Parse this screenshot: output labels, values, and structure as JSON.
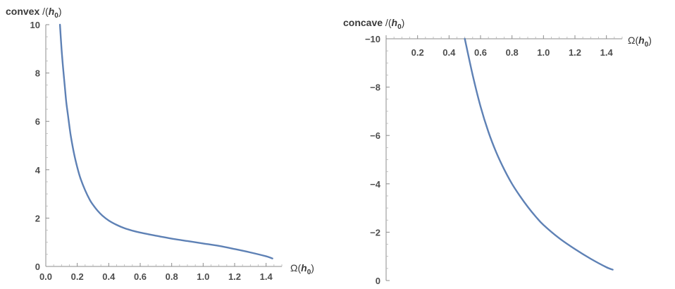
{
  "colors": {
    "series": "#5e81b5"
  },
  "chart_data": [
    {
      "type": "line",
      "ylabel": {
        "word": "convex",
        "mid": " /(",
        "var": "h",
        "sub": "0",
        "close": ")"
      },
      "xlabel": {
        "omega": "Ω(",
        "var": "h",
        "sub": "0",
        "close": ")"
      },
      "xlim": [
        0,
        1.5
      ],
      "ylim": [
        0,
        10
      ],
      "x_ticks": [
        0.0,
        0.2,
        0.4,
        0.6,
        0.8,
        1.0,
        1.2,
        1.4
      ],
      "x_tick_labels": [
        "0.0",
        "0.2",
        "0.4",
        "0.6",
        "0.8",
        "1.0",
        "1.2",
        "1.4"
      ],
      "y_ticks": [
        0,
        2,
        4,
        6,
        8,
        10
      ],
      "y_tick_labels": [
        "0",
        "2",
        "4",
        "6",
        "8",
        "10"
      ],
      "grid": false,
      "series": [
        {
          "x": [
            0.09,
            0.1,
            0.11,
            0.12,
            0.13,
            0.14,
            0.15,
            0.16,
            0.18,
            0.2,
            0.22,
            0.25,
            0.28,
            0.3,
            0.33,
            0.36,
            0.4,
            0.45,
            0.5,
            0.55,
            0.6,
            0.7,
            0.8,
            0.9,
            1.0,
            1.1,
            1.2,
            1.3,
            1.4,
            1.44
          ],
          "y": [
            10.0,
            9.0,
            8.2,
            7.5,
            6.8,
            6.3,
            5.8,
            5.35,
            4.65,
            4.1,
            3.65,
            3.15,
            2.75,
            2.55,
            2.3,
            2.1,
            1.9,
            1.72,
            1.58,
            1.48,
            1.4,
            1.27,
            1.15,
            1.05,
            0.95,
            0.85,
            0.72,
            0.58,
            0.42,
            0.33
          ]
        }
      ]
    },
    {
      "type": "line",
      "ylabel": {
        "word": "concave",
        "mid": " /(",
        "var": "h",
        "sub": "0",
        "close": ")"
      },
      "xlabel": {
        "omega": "Ω(",
        "var": "h",
        "sub": "0",
        "close": ")"
      },
      "xlim": [
        0,
        1.5
      ],
      "ylim": [
        -10,
        0
      ],
      "x_ticks": [
        0.2,
        0.4,
        0.6,
        0.8,
        1.0,
        1.2,
        1.4
      ],
      "x_tick_labels": [
        "0.2",
        "0.4",
        "0.6",
        "0.8",
        "1.0",
        "1.2",
        "1.4"
      ],
      "y_ticks": [
        0,
        -2,
        -4,
        -6,
        -8,
        -10
      ],
      "y_tick_labels": [
        "0",
        "−2",
        "−4",
        "−6",
        "−8",
        "−10"
      ],
      "grid": false,
      "series": [
        {
          "x": [
            0.5,
            0.55,
            0.6,
            0.65,
            0.7,
            0.75,
            0.8,
            0.85,
            0.9,
            0.95,
            1.0,
            1.1,
            1.2,
            1.3,
            1.4,
            1.44
          ],
          "y": [
            -10.0,
            -8.5,
            -7.2,
            -6.15,
            -5.3,
            -4.6,
            -4.0,
            -3.5,
            -3.05,
            -2.65,
            -2.3,
            -1.75,
            -1.3,
            -0.9,
            -0.55,
            -0.45
          ]
        }
      ]
    }
  ]
}
